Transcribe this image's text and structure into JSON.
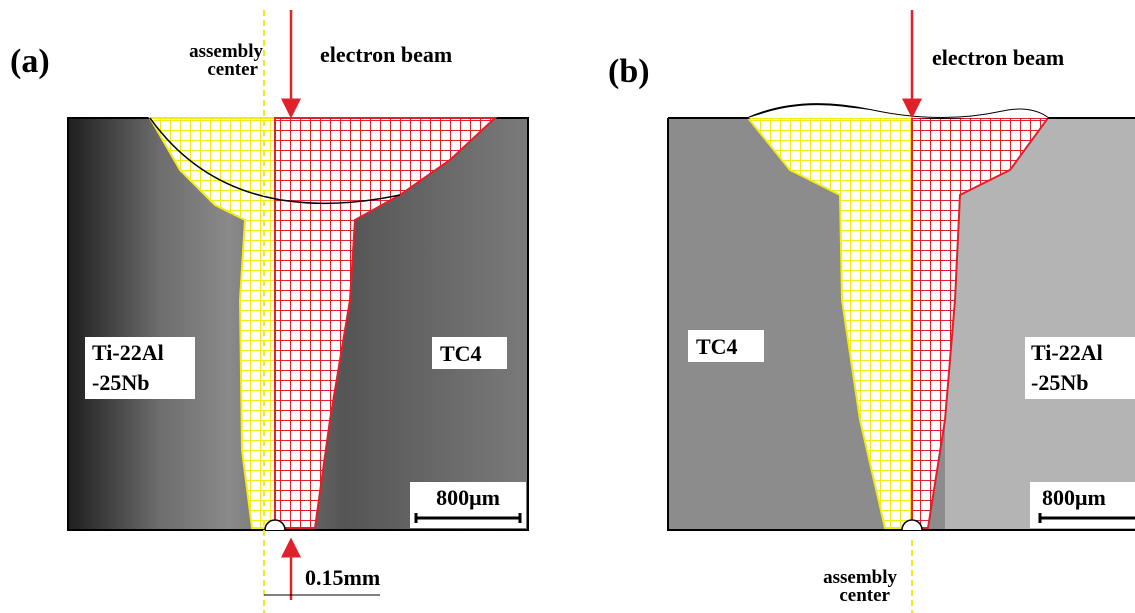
{
  "panels": [
    {
      "label": "(a)",
      "beam": "electron beam",
      "assembly": [
        "assembly",
        "center"
      ],
      "left_material": [
        "Ti-22Al",
        "-25Nb"
      ],
      "right_material": [
        "TC4"
      ],
      "scale_bar": "800μm",
      "offset": "0.15mm"
    },
    {
      "label": "(b)",
      "beam": "electron beam",
      "assembly": [
        "assembly",
        "center"
      ],
      "left_material": [
        "TC4"
      ],
      "right_material": [
        "Ti-22Al",
        "-25Nb"
      ],
      "scale_bar": "800μm"
    }
  ]
}
